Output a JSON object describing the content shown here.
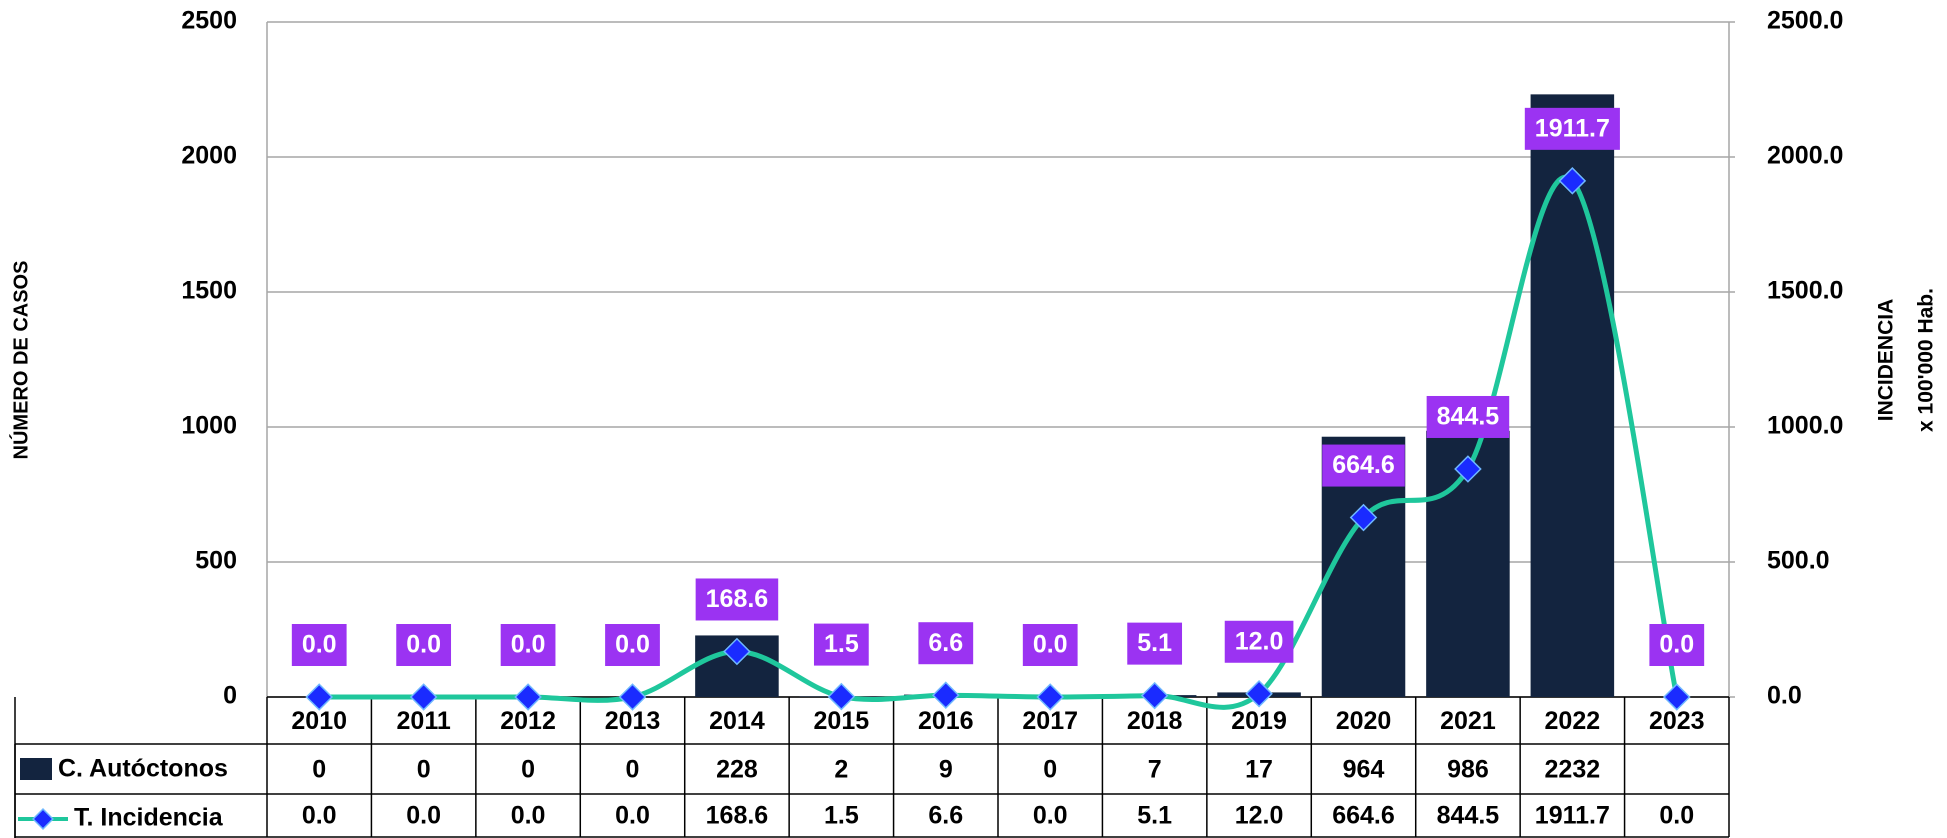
{
  "chart_data": {
    "type": "combo",
    "categories": [
      "2010",
      "2011",
      "2012",
      "2013",
      "2014",
      "2015",
      "2016",
      "2017",
      "2018",
      "2019",
      "2020",
      "2021",
      "2022",
      "2023"
    ],
    "series": [
      {
        "name": "C. Autóctonos",
        "type": "bar",
        "color": "#13243f",
        "values": [
          0,
          0,
          0,
          0,
          228,
          2,
          9,
          0,
          7,
          17,
          964,
          986,
          2232,
          null
        ]
      },
      {
        "name": "T. Incidencia",
        "type": "line",
        "axis": "y2",
        "color": "#1fc79c",
        "marker_color": "#1a2bff",
        "label_color": "#9b33f2",
        "values": [
          0,
          0,
          0,
          0,
          168.6,
          1.5,
          6.6,
          0,
          5.1,
          12,
          664.6,
          844.5,
          1911.7,
          0
        ],
        "value_labels": [
          "0.0",
          "0.0",
          "0.0",
          "0.0",
          "168.6",
          "1.5",
          "6.6",
          "0.0",
          "5.1",
          "12.0",
          "664.6",
          "844.5",
          "1911.7",
          "0.0"
        ]
      }
    ],
    "ylabel": "NÚMERO DE CASOS",
    "y2label": [
      "INCIDENCIA",
      "x 100'000 Hab."
    ],
    "ylim": [
      0,
      2500
    ],
    "yticks": [
      0,
      500,
      1000,
      1500,
      2000,
      2500
    ],
    "y2lim": [
      0,
      2500
    ],
    "y2ticks": [
      {
        "value": 0,
        "label": "0.0"
      },
      {
        "value": 500,
        "label": "500.0"
      },
      {
        "value": 1000,
        "label": "1000.0"
      },
      {
        "value": 1500,
        "label": "1500.0"
      },
      {
        "value": 2000,
        "label": "2000.0"
      },
      {
        "value": 2500,
        "label": "2500.0"
      }
    ],
    "grid": true,
    "data_table": true
  }
}
